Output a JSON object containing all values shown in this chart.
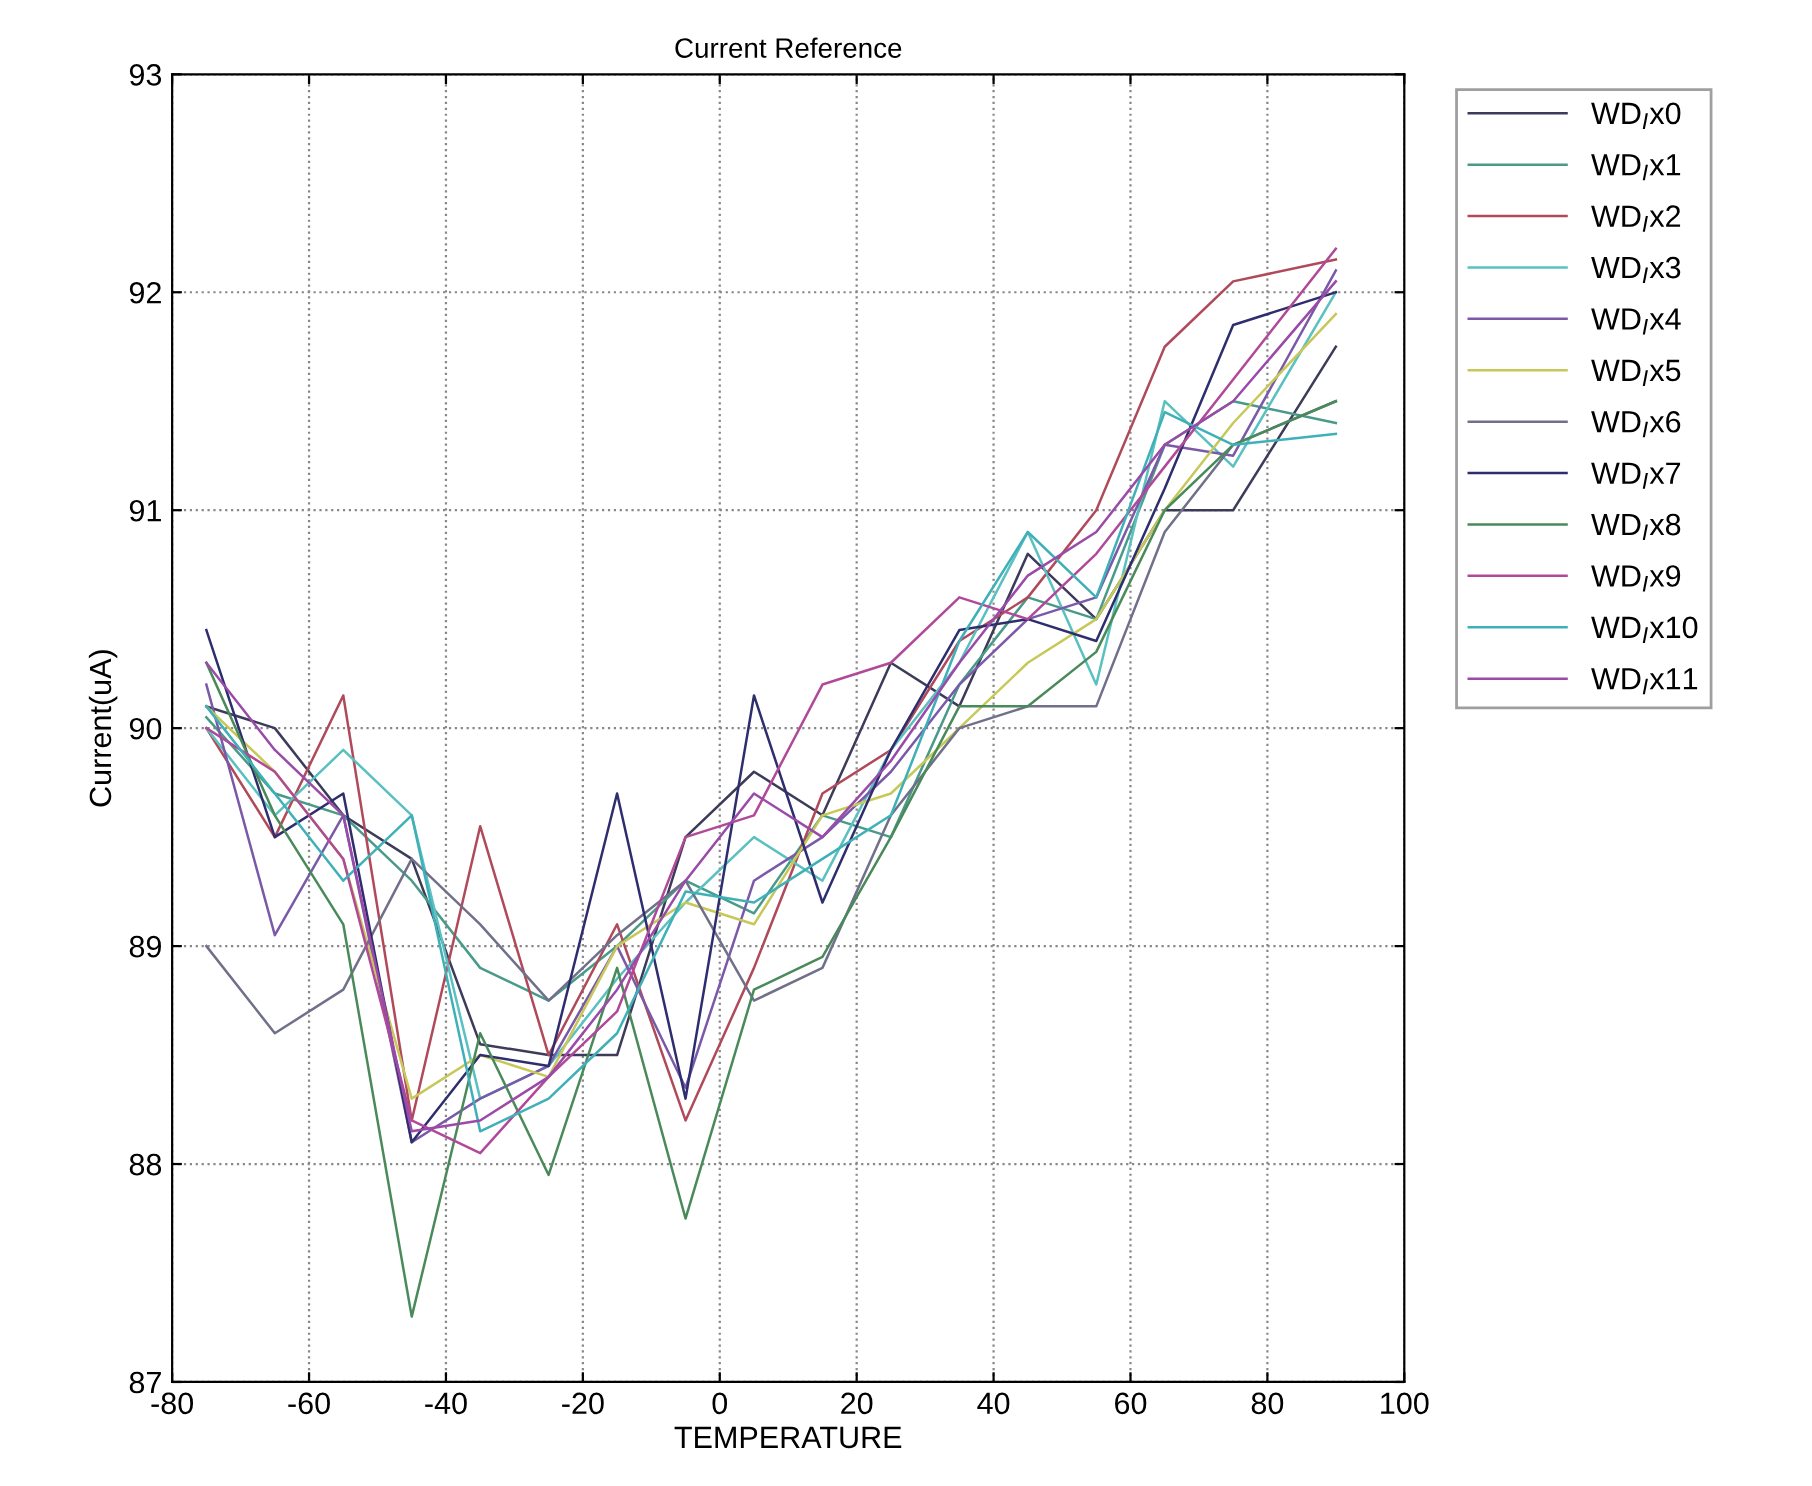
{
  "chart_data": {
    "type": "line",
    "title": "Current Reference",
    "xlabel": "TEMPERATURE",
    "ylabel": "Current(uA)",
    "x": [
      -75,
      -65,
      -55,
      -45,
      -35,
      -25,
      -15,
      -5,
      5,
      15,
      25,
      35,
      45,
      55,
      65,
      75,
      90
    ],
    "xlim": [
      -80,
      100
    ],
    "xticks": [
      -80,
      -60,
      -40,
      -20,
      0,
      20,
      40,
      60,
      80,
      100
    ],
    "ylim": [
      87,
      93
    ],
    "yticks": [
      87,
      88,
      89,
      90,
      91,
      92,
      93
    ],
    "grid": true,
    "legend": "right",
    "line_style": "solid",
    "marker": "none",
    "series": [
      {
        "name": "WD$_{I}$x0",
        "color": "#3c3c5a",
        "values": [
          90.1,
          90.0,
          89.6,
          89.4,
          88.55,
          88.5,
          88.5,
          89.5,
          89.8,
          89.6,
          90.3,
          90.1,
          90.8,
          90.5,
          91.0,
          91.0,
          91.75
        ]
      },
      {
        "name": "WD$_{I}$x1",
        "color": "#4a9a8a",
        "values": [
          90.05,
          89.7,
          89.6,
          89.3,
          88.9,
          88.75,
          89.0,
          89.3,
          89.15,
          89.6,
          89.5,
          90.2,
          90.6,
          90.5,
          91.3,
          91.5,
          91.4
        ]
      },
      {
        "name": "WD$_{I}$x2",
        "color": "#b04a5a",
        "values": [
          90.0,
          89.5,
          90.15,
          88.2,
          89.55,
          88.5,
          89.1,
          88.2,
          88.9,
          89.7,
          89.9,
          90.4,
          90.6,
          91.0,
          91.75,
          92.05,
          92.15
        ]
      },
      {
        "name": "WD$_{I}$x3",
        "color": "#5ac0c0",
        "values": [
          90.0,
          89.6,
          89.9,
          89.6,
          88.3,
          88.45,
          88.85,
          89.2,
          89.5,
          89.3,
          89.9,
          90.3,
          90.9,
          90.2,
          91.5,
          91.2,
          92.0
        ]
      },
      {
        "name": "WD$_{I}$x4",
        "color": "#7a5aa8",
        "values": [
          90.2,
          89.05,
          89.6,
          88.1,
          88.3,
          88.45,
          89.0,
          88.35,
          89.3,
          89.5,
          89.8,
          90.2,
          90.5,
          90.6,
          91.3,
          91.25,
          92.1
        ]
      },
      {
        "name": "WD$_{I}$x5",
        "color": "#c8c85a",
        "values": [
          90.1,
          89.8,
          89.4,
          88.3,
          88.5,
          88.4,
          89.0,
          89.2,
          89.1,
          89.6,
          89.7,
          90.0,
          90.3,
          90.5,
          91.0,
          91.4,
          91.9
        ]
      },
      {
        "name": "WD$_{I}$x6",
        "color": "#70708a",
        "values": [
          89.0,
          88.6,
          88.8,
          89.4,
          89.1,
          88.75,
          89.05,
          89.3,
          88.75,
          88.9,
          89.6,
          90.0,
          90.1,
          90.1,
          90.9,
          91.3,
          91.5
        ]
      },
      {
        "name": "WD$_{I}$x7",
        "color": "#2e2e6e",
        "values": [
          90.45,
          89.5,
          89.7,
          88.1,
          88.5,
          88.45,
          89.7,
          88.3,
          90.15,
          89.2,
          89.9,
          90.45,
          90.5,
          90.4,
          91.1,
          91.85,
          92.0
        ]
      },
      {
        "name": "WD$_{I}$x8",
        "color": "#4a8a5a",
        "values": [
          90.3,
          89.6,
          89.1,
          87.3,
          88.6,
          87.95,
          88.9,
          87.75,
          88.8,
          88.95,
          89.5,
          90.1,
          90.1,
          90.35,
          91.0,
          91.3,
          91.5
        ]
      },
      {
        "name": "WD$_{I}$x9",
        "color": "#b04a98",
        "values": [
          90.0,
          89.8,
          89.4,
          88.2,
          88.05,
          88.4,
          88.7,
          89.5,
          89.6,
          90.2,
          90.3,
          90.6,
          90.5,
          90.8,
          91.2,
          91.6,
          92.2
        ]
      },
      {
        "name": "WD$_{I}$x10",
        "color": "#40b0b8",
        "values": [
          90.1,
          89.7,
          89.3,
          89.6,
          88.15,
          88.3,
          88.6,
          89.25,
          89.2,
          89.4,
          89.6,
          90.4,
          90.9,
          90.6,
          91.45,
          91.3,
          91.35
        ]
      },
      {
        "name": "WD$_{I}$x11",
        "color": "#9a4aa8",
        "values": [
          90.3,
          89.9,
          89.6,
          88.15,
          88.2,
          88.4,
          88.8,
          89.3,
          89.7,
          89.5,
          89.85,
          90.3,
          90.7,
          90.9,
          91.3,
          91.5,
          92.05
        ]
      }
    ]
  }
}
